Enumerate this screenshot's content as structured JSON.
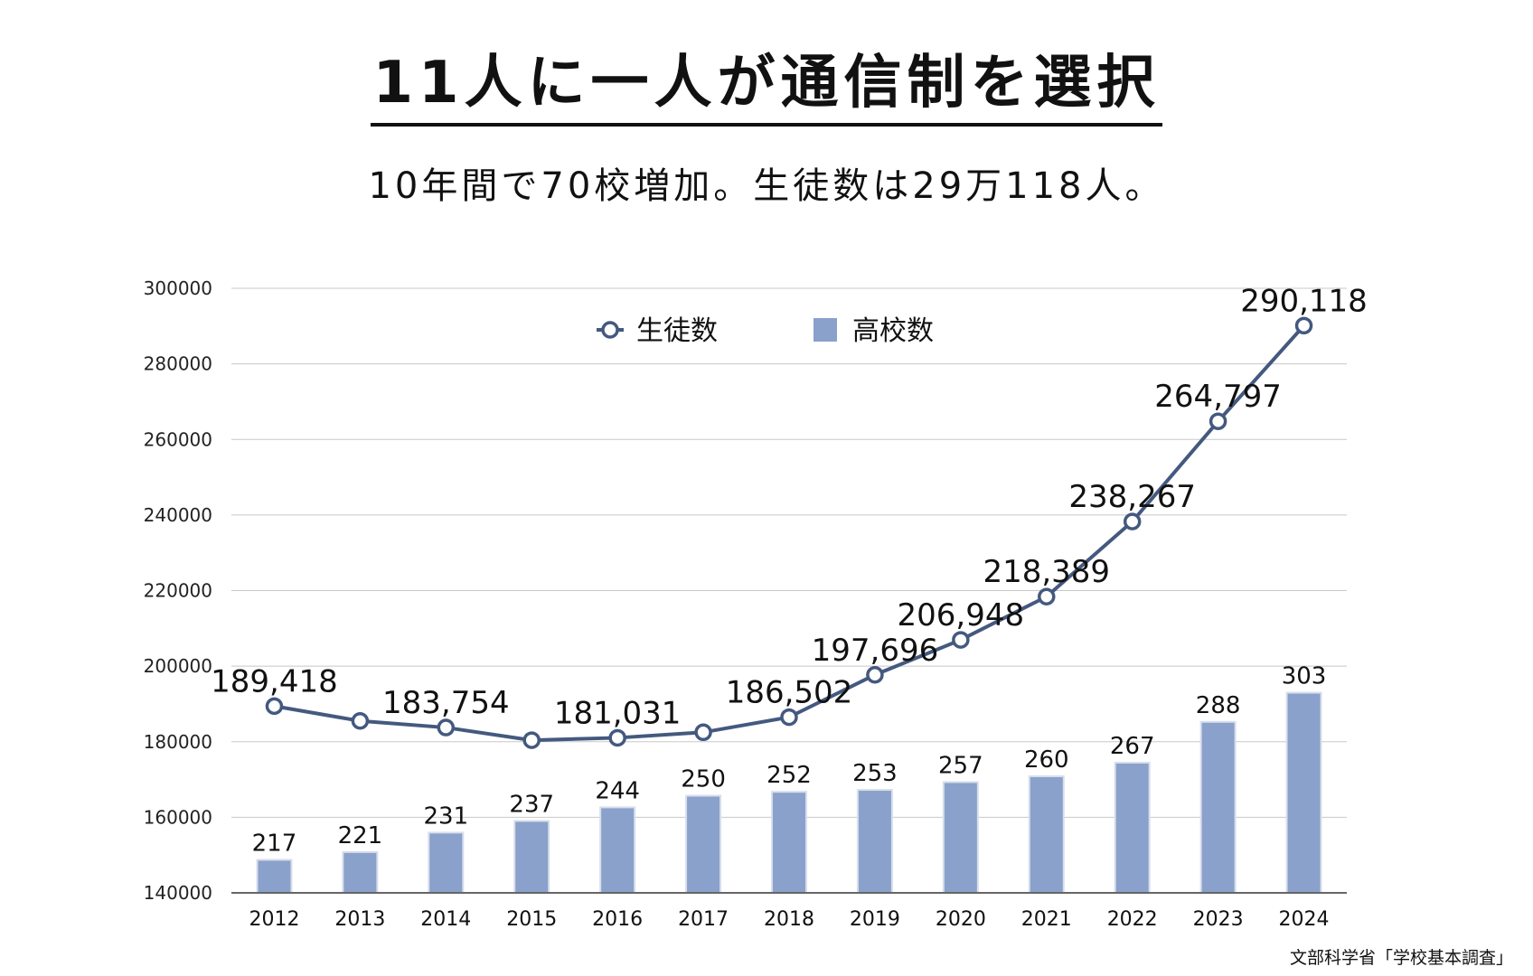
{
  "title": "11人に一人が通信制を選択",
  "subtitle": "10年間で70校増加。生徒数は29万118人。",
  "source": "文部科学省「学校基本調査」",
  "colors": {
    "line": "#44597f",
    "bar": "#8aa1cb",
    "grid": "#c8c8c8",
    "axis": "#666666"
  },
  "chart_data": {
    "type": "bar+line",
    "categories": [
      "2012",
      "2013",
      "2014",
      "2015",
      "2016",
      "2017",
      "2018",
      "2019",
      "2020",
      "2021",
      "2022",
      "2023",
      "2024"
    ],
    "ylim": [
      140000,
      300000
    ],
    "yticks": [
      140000,
      160000,
      180000,
      200000,
      220000,
      240000,
      260000,
      280000,
      300000
    ],
    "grid": true,
    "legend_position": "top-center",
    "series": [
      {
        "name": "生徒数",
        "type": "line",
        "values": [
          189418,
          185500,
          183754,
          180400,
          181031,
          182500,
          186502,
          197696,
          206948,
          218389,
          238267,
          264797,
          290118
        ],
        "labels": [
          "189,418",
          "",
          "183,754",
          "",
          "181,031",
          "",
          "186,502",
          "197,696",
          "206,948",
          "218,389",
          "238,267",
          "264,797",
          "290,118"
        ]
      },
      {
        "name": "高校数",
        "type": "bar",
        "values": [
          217,
          221,
          231,
          237,
          244,
          250,
          252,
          253,
          257,
          260,
          267,
          288,
          303
        ],
        "labels": [
          "217",
          "221",
          "231",
          "237",
          "244",
          "250",
          "252",
          "253",
          "257",
          "260",
          "267",
          "288",
          "303"
        ]
      }
    ]
  }
}
